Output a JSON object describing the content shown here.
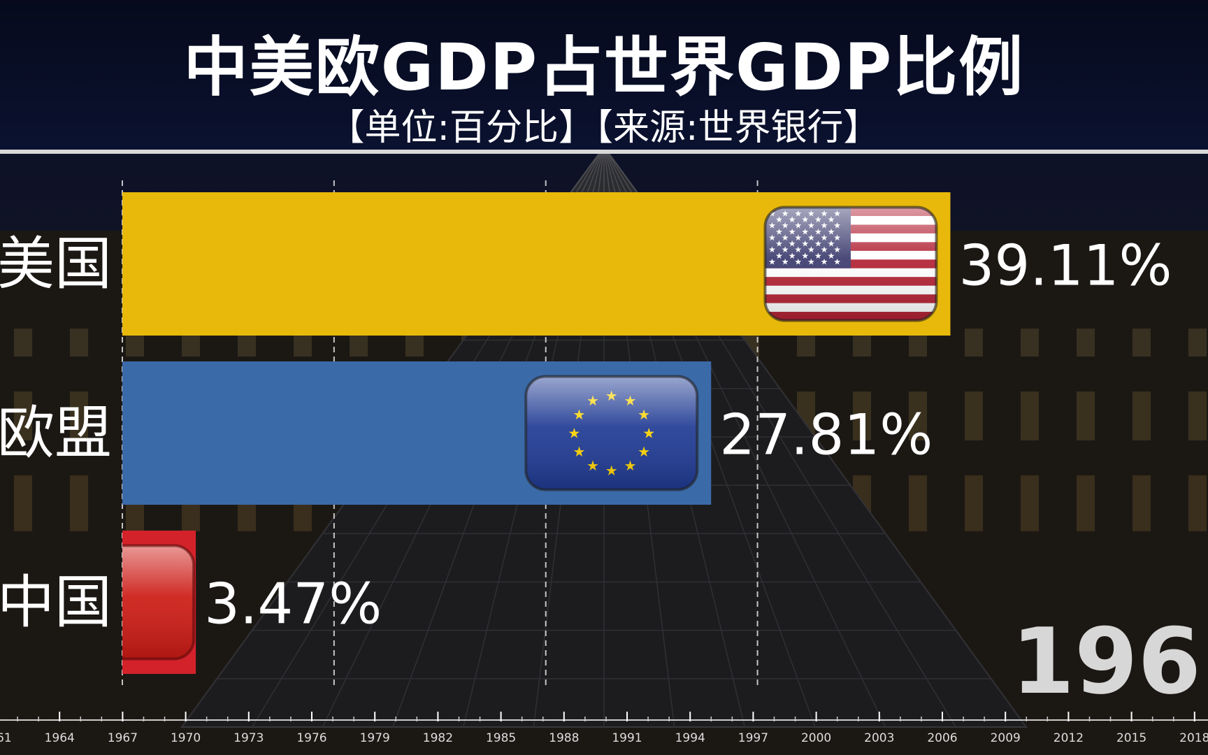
{
  "header": {
    "title": "中美欧GDP占世界GDP比例",
    "subtitle": "【单位:百分比】【来源:世界银行】"
  },
  "current_year": "196",
  "colors": {
    "usa": "#e8b90a",
    "eu": "#3b6aa8",
    "china": "#d3222a",
    "header_bg": "#0b1230"
  },
  "chart_data": {
    "type": "bar",
    "orientation": "horizontal",
    "title": "中美欧GDP占世界GDP比例",
    "subtitle": "【单位:百分比】【来源:世界银行】",
    "categories": [
      "美国",
      "欧盟",
      "中国"
    ],
    "values": [
      39.11,
      27.81,
      3.47
    ],
    "value_labels": [
      "39.11%",
      "27.81%",
      "3.47%"
    ],
    "flag_icons": [
      "usa-flag-icon",
      "eu-flag-icon",
      "china-flag-icon"
    ],
    "xlim": [
      0,
      42
    ],
    "grid": true,
    "timeline_labels": [
      "61",
      "1964",
      "1967",
      "1970",
      "1973",
      "1976",
      "1979",
      "1982",
      "1985",
      "1988",
      "1991",
      "1994",
      "1997",
      "2000",
      "2003",
      "2006",
      "2009",
      "2012",
      "2015",
      "2018"
    ]
  }
}
